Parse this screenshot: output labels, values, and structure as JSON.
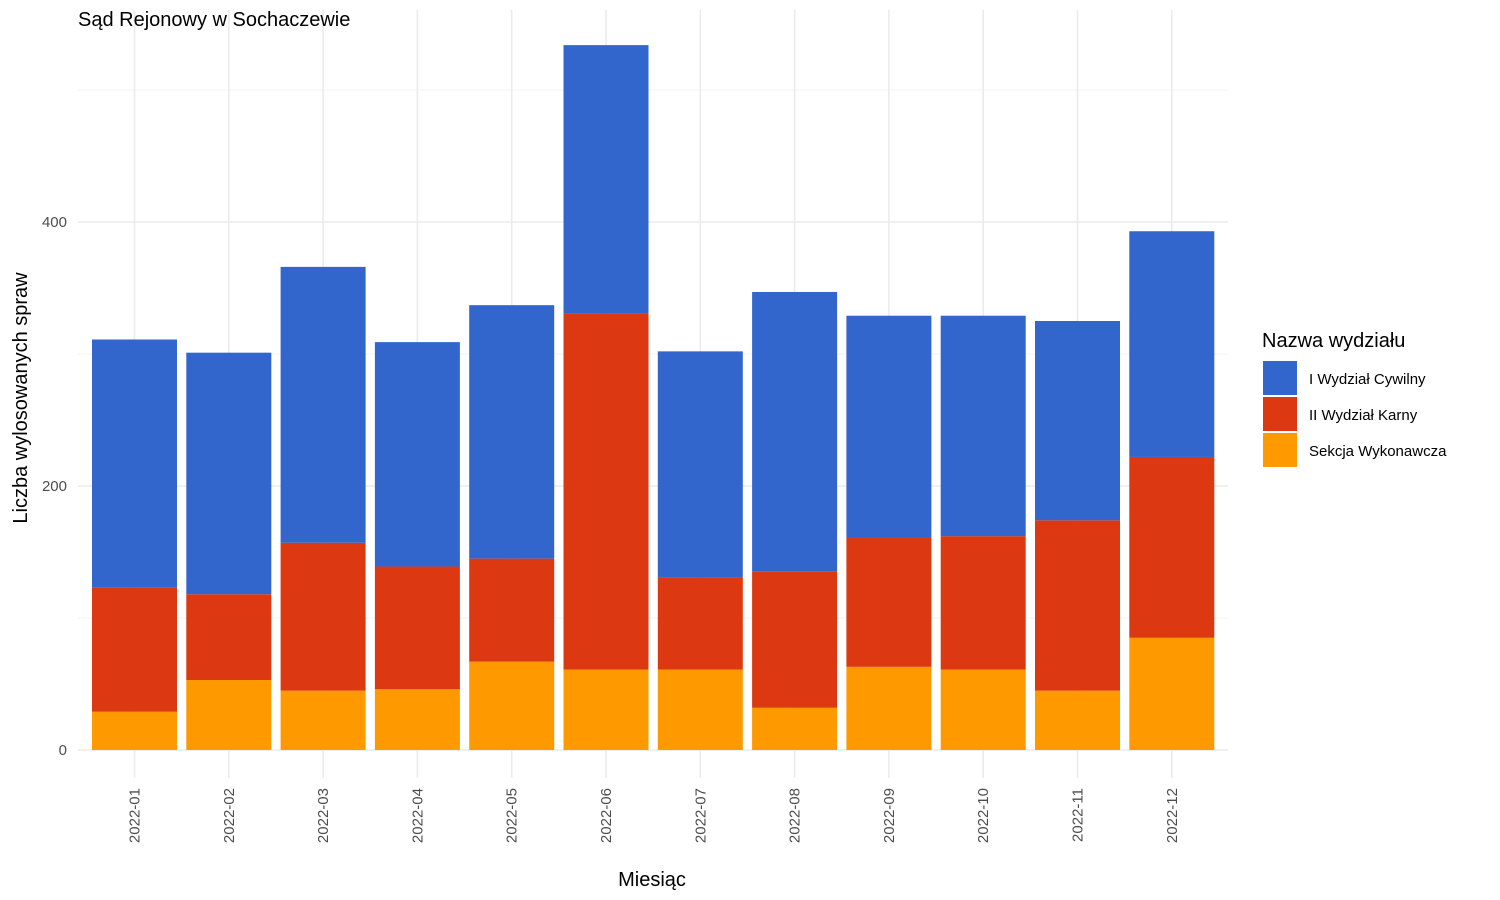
{
  "chart_data": {
    "type": "bar",
    "stacked": true,
    "title": "Sąd Rejonowy w Sochaczewie",
    "xlabel": "Miesiąc",
    "ylabel": "Liczba wylosowanych spraw",
    "ylim": [
      0,
      540
    ],
    "yticks": [
      0,
      200,
      400
    ],
    "grid": true,
    "legend_position": "right",
    "legend_title": "Nazwa wydziału",
    "categories": [
      "2022-01",
      "2022-02",
      "2022-03",
      "2022-04",
      "2022-05",
      "2022-06",
      "2022-07",
      "2022-08",
      "2022-09",
      "2022-10",
      "2022-11",
      "2022-12"
    ],
    "series": [
      {
        "name": "Sekcja Wykonawcza",
        "color": "#ff9900",
        "values": [
          29,
          53,
          45,
          46,
          67,
          61,
          61,
          32,
          63,
          61,
          45,
          85
        ]
      },
      {
        "name": "II Wydział Karny",
        "color": "#dc3912",
        "values": [
          94,
          65,
          112,
          93,
          78,
          270,
          70,
          103,
          98,
          101,
          129,
          137
        ]
      },
      {
        "name": "I Wydział Cywilny",
        "color": "#3366cc",
        "values": [
          188,
          183,
          209,
          170,
          192,
          203,
          171,
          212,
          168,
          167,
          151,
          171
        ]
      }
    ]
  }
}
